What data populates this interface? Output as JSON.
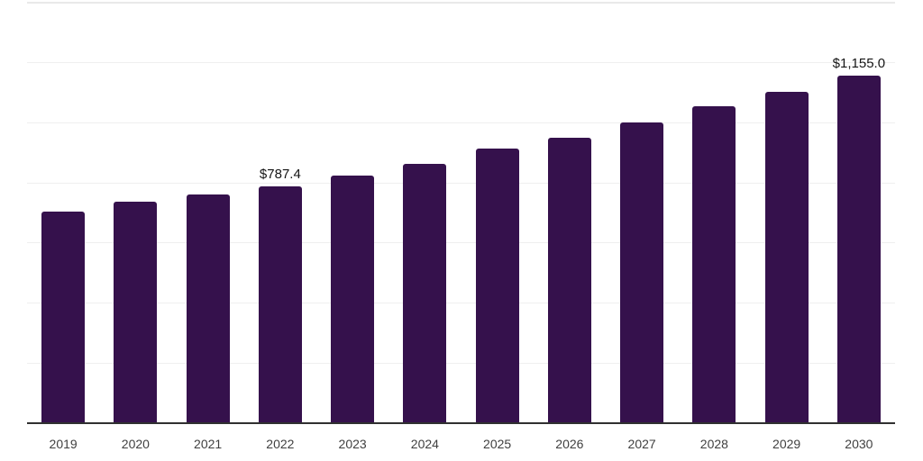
{
  "chart_data": {
    "type": "bar",
    "title": "",
    "xlabel": "",
    "ylabel": "",
    "categories": [
      "2019",
      "2020",
      "2021",
      "2022",
      "2023",
      "2024",
      "2025",
      "2026",
      "2027",
      "2028",
      "2029",
      "2030"
    ],
    "values": [
      704,
      735,
      761,
      787.4,
      823,
      862,
      912,
      948,
      1000,
      1052,
      1101,
      1155
    ],
    "value_labels": [
      {
        "category": "2022",
        "index": 3,
        "text": "$787.4",
        "value": 787.4
      },
      {
        "category": "2030",
        "index": 11,
        "text": "$1,155.0",
        "value": 1155.0
      }
    ],
    "ylim": [
      0,
      1400
    ],
    "gridline_interval": 200,
    "grid": true,
    "legend": "none",
    "y_axis_labels_visible": false,
    "colors": {
      "bar": "#35114C",
      "axis_line": "#303030",
      "gridline": "#efefef",
      "top_border": "#e9e9e9",
      "tick_label": "#3f3f3f",
      "value_label": "#141414",
      "background": "#ffffff"
    }
  }
}
